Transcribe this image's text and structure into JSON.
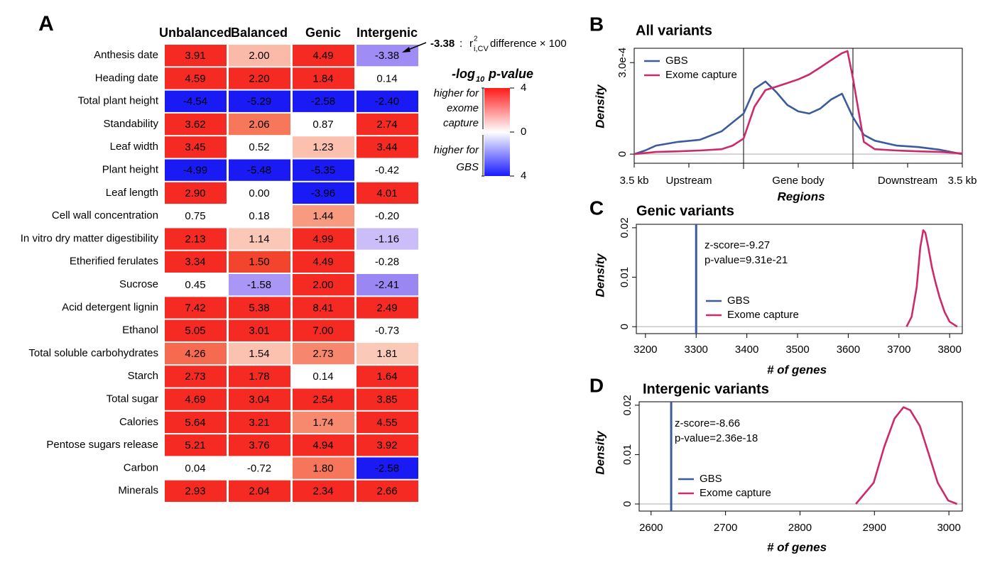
{
  "chart_data": [
    {
      "type": "heatmap",
      "panel": "A",
      "columns": [
        "Unbalanced",
        "Balanced",
        "Genic",
        "Intergenic"
      ],
      "rows": [
        "Anthesis date",
        "Heading date",
        "Total plant height",
        "Standability",
        "Leaf width",
        "Plant height",
        "Leaf length",
        "Cell wall concentration",
        "In vitro dry matter digestibility",
        "Etherified ferulates",
        "Sucrose",
        "Acid detergent lignin",
        "Ethanol",
        "Total soluble carbohydrates",
        "Starch",
        "Total sugar",
        "Calories",
        "Pentose sugars release",
        "Carbon",
        "Minerals"
      ],
      "row_label_colors": [
        "#000000",
        "#000000",
        "#000000",
        "#000000",
        "#000000",
        "#000000",
        "#000000",
        "#7f7f7f",
        "#7f7f7f",
        "#7f7f7f",
        "#7f7f7f",
        "#7f7f7f",
        "#7f7f7f",
        "#7f7f7f",
        "#7f7f7f",
        "#7f7f7f",
        "#7f7f7f",
        "#7f7f7f",
        "#7f7f7f",
        "#7f7f7f"
      ],
      "values": [
        [
          3.91,
          2.0,
          4.49,
          -3.38
        ],
        [
          4.59,
          2.2,
          1.84,
          0.14
        ],
        [
          -4.54,
          -5.29,
          -2.58,
          -2.4
        ],
        [
          3.62,
          2.06,
          0.87,
          2.74
        ],
        [
          3.45,
          0.52,
          1.23,
          3.44
        ],
        [
          -4.99,
          -5.48,
          -5.35,
          -0.42
        ],
        [
          2.9,
          0.0,
          -3.96,
          4.01
        ],
        [
          0.75,
          0.18,
          1.44,
          -0.2
        ],
        [
          2.13,
          1.14,
          4.99,
          -1.16
        ],
        [
          3.34,
          1.5,
          4.49,
          -0.28
        ],
        [
          0.45,
          -1.58,
          2.0,
          -2.41
        ],
        [
          7.42,
          5.38,
          8.41,
          2.49
        ],
        [
          5.05,
          3.01,
          7.0,
          -0.73
        ],
        [
          4.26,
          1.54,
          2.73,
          1.81
        ],
        [
          2.73,
          1.78,
          0.14,
          1.64
        ],
        [
          4.69,
          3.04,
          2.54,
          3.85
        ],
        [
          5.64,
          3.21,
          1.74,
          4.55
        ],
        [
          5.21,
          3.76,
          4.94,
          3.92
        ],
        [
          0.04,
          -0.72,
          1.8,
          -2.58
        ],
        [
          2.93,
          2.04,
          2.34,
          2.66
        ]
      ],
      "value_labels": [
        [
          "3.91",
          "2.00",
          "4.49",
          "-3.38"
        ],
        [
          "4.59",
          "2.20",
          "1.84",
          "0.14"
        ],
        [
          "-4.54",
          "-5.29",
          "-2.58",
          "-2.40"
        ],
        [
          "3.62",
          "2.06",
          "0.87",
          "2.74"
        ],
        [
          "3.45",
          "0.52",
          "1.23",
          "3.44"
        ],
        [
          "-4.99",
          "-5.48",
          "-5.35",
          "-0.42"
        ],
        [
          "2.90",
          "0.00",
          "-3.96",
          "4.01"
        ],
        [
          "0.75",
          "0.18",
          "1.44",
          "-0.20"
        ],
        [
          "2.13",
          "1.14",
          "4.99",
          "-1.16"
        ],
        [
          "3.34",
          "1.50",
          "4.49",
          "-0.28"
        ],
        [
          "0.45",
          "-1.58",
          "2.00",
          "-2.41"
        ],
        [
          "7.42",
          "5.38",
          "8.41",
          "2.49"
        ],
        [
          "5.05",
          "3.01",
          "7.00",
          "-0.73"
        ],
        [
          "4.26",
          "1.54",
          "2.73",
          "1.81"
        ],
        [
          "2.73",
          "1.78",
          "0.14",
          "1.64"
        ],
        [
          "4.69",
          "3.04",
          "2.54",
          "3.85"
        ],
        [
          "5.64",
          "3.21",
          "1.74",
          "4.55"
        ],
        [
          "5.21",
          "3.76",
          "4.94",
          "3.92"
        ],
        [
          "0.04",
          "-0.72",
          "1.80",
          "-2.58"
        ],
        [
          "2.93",
          "2.04",
          "2.34",
          "2.66"
        ]
      ],
      "cell_colors": [
        [
          "#f52a22",
          "#fbb9a8",
          "#f52a22",
          "#9f8cf5"
        ],
        [
          "#f52a22",
          "#f52a22",
          "#f52a22",
          "#ffffff"
        ],
        [
          "#1a1af5",
          "#1a1af5",
          "#1a1af5",
          "#1a1af5"
        ],
        [
          "#f52a22",
          "#f7775a",
          "#ffffff",
          "#f52a22"
        ],
        [
          "#f52a22",
          "#ffffff",
          "#fbc0ae",
          "#f52a22"
        ],
        [
          "#1a1af5",
          "#1a1af5",
          "#1a1af5",
          "#ffffff"
        ],
        [
          "#f52a22",
          "#ffffff",
          "#1a1af5",
          "#f52a22"
        ],
        [
          "#ffffff",
          "#ffffff",
          "#f79a80",
          "#ffffff"
        ],
        [
          "#f52a22",
          "#fbc8b8",
          "#f52a22",
          "#cbbdf7"
        ],
        [
          "#f52a22",
          "#f3452d",
          "#f52a22",
          "#ffffff"
        ],
        [
          "#ffffff",
          "#a996f5",
          "#f52a22",
          "#9a87f4"
        ],
        [
          "#f52a22",
          "#f52a22",
          "#f52a22",
          "#f52a22"
        ],
        [
          "#f52a22",
          "#f52a22",
          "#f52a22",
          "#ffffff"
        ],
        [
          "#f66a50",
          "#fbc2b0",
          "#f7876c",
          "#fbc9b8"
        ],
        [
          "#f52a22",
          "#f52a22",
          "#ffffff",
          "#f52a22"
        ],
        [
          "#f52a22",
          "#f52a22",
          "#f52a22",
          "#f52a22"
        ],
        [
          "#f52a22",
          "#f52a22",
          "#f7896e",
          "#f52a22"
        ],
        [
          "#f52a22",
          "#f52a22",
          "#f52a22",
          "#f52a22"
        ],
        [
          "#ffffff",
          "#ffffff",
          "#f5765a",
          "#1a1af5"
        ],
        [
          "#f52a22",
          "#f52a22",
          "#f52a22",
          "#f52a22"
        ]
      ],
      "annotation": {
        "value_text": "-3.38",
        "sep": ":",
        "symbol": "r",
        "sup": "2",
        "sub": "i,CV",
        "text": "difference × 100"
      },
      "colorbar": {
        "title_prefix": "-log",
        "title_sub": "10",
        "title_suffix": "p-value",
        "lim": [
          -4,
          4
        ],
        "ticks": [
          4,
          0,
          {
            "value": -4,
            "label": "4"
          }
        ],
        "colors": [
          "#1a1aff",
          "#ffffff",
          "#ff1a1a"
        ],
        "upper_label": [
          "higher for",
          "exome",
          "capture"
        ],
        "lower_label": [
          "higher for",
          "GBS"
        ]
      }
    },
    {
      "type": "line",
      "panel": "B",
      "title": "All variants",
      "xlabel": "Regions",
      "ylabel": "Density",
      "xlim": [
        0,
        3
      ],
      "ylim": [
        -3e-05,
        0.000347
      ],
      "xticks": [
        {
          "value": 0,
          "label": "3.5 kb"
        },
        {
          "value": 0.5,
          "label": "Upstream"
        },
        {
          "value": 1.5,
          "label": "Gene body"
        },
        {
          "value": 2.5,
          "label": "Downstream"
        },
        {
          "value": 3,
          "label": "3.5 kb"
        }
      ],
      "yticks": [
        0,
        {
          "value": 0.0003,
          "label": "3.0e-4"
        }
      ],
      "region_boundaries": [
        1,
        2
      ],
      "zero_line": true,
      "legend": "top-left",
      "series": [
        {
          "name": "GBS",
          "color": "#3b5b9b",
          "x": [
            0,
            0.1,
            0.2,
            0.4,
            0.6,
            0.8,
            1.0,
            1.1,
            1.2,
            1.3,
            1.4,
            1.5,
            1.6,
            1.7,
            1.8,
            1.9,
            2.0,
            2.1,
            2.2,
            2.4,
            2.6,
            2.8,
            3.0
          ],
          "values": [
            0,
            1.2e-05,
            2.8e-05,
            4e-05,
            4.7e-05,
            7.5e-05,
            0.000133,
            0.000214,
            0.000238,
            0.000203,
            0.000161,
            0.00014,
            0.000133,
            0.000149,
            0.000179,
            0.000198,
            0.000121,
            6.3e-05,
            4.4e-05,
            2.8e-05,
            2.3e-05,
            1.4e-05,
            0
          ]
        },
        {
          "name": "Exome capture",
          "color": "#cc2a6a",
          "x": [
            0,
            0.2,
            0.4,
            0.6,
            0.8,
            0.9,
            1.0,
            1.1,
            1.2,
            1.3,
            1.4,
            1.5,
            1.6,
            1.7,
            1.8,
            1.9,
            1.95,
            2.0,
            2.1,
            2.2,
            2.4,
            2.6,
            2.8,
            3.0
          ],
          "values": [
            0,
            7e-06,
            9e-06,
            1.2e-05,
            1.6e-05,
            2.8e-05,
            5.1e-05,
            0.000156,
            0.00021,
            0.000221,
            0.000233,
            0.000245,
            0.000261,
            0.000284,
            0.000308,
            0.000331,
            0.000338,
            0.000249,
            4e-05,
            1.6e-05,
            1.2e-05,
            9e-06,
            7e-06,
            2e-06
          ]
        }
      ]
    },
    {
      "type": "line",
      "panel": "C",
      "title": "Genic variants",
      "xlabel": "# of genes",
      "ylabel": "Density",
      "xlim": [
        3182,
        3825
      ],
      "ylim": [
        -0.0014,
        0.0207
      ],
      "xticks": [
        3200,
        3300,
        3400,
        3500,
        3600,
        3700,
        3800
      ],
      "yticks": [
        0,
        0.01,
        0.02
      ],
      "zero_line": true,
      "legend": "middle-left",
      "annotations": [
        "z-score=-9.27",
        "p-value=9.31e-21"
      ],
      "series": [
        {
          "name": "GBS",
          "color": "#3b5b9b",
          "style": "vline",
          "x": [
            3300
          ]
        },
        {
          "name": "Exome capture",
          "color": "#cc2a6a",
          "x": [
            3715,
            3725,
            3735,
            3742,
            3748,
            3752,
            3758,
            3765,
            3772,
            3780,
            3790,
            3800,
            3815
          ],
          "values": [
            0,
            0.002,
            0.008,
            0.016,
            0.0195,
            0.019,
            0.016,
            0.012,
            0.009,
            0.006,
            0.003,
            0.001,
            0
          ]
        }
      ]
    },
    {
      "type": "line",
      "panel": "D",
      "title": "Intergenic variants",
      "xlabel": "# of genes",
      "ylabel": "Density",
      "xlim": [
        2584,
        3018
      ],
      "ylim": [
        -0.00144,
        0.0207
      ],
      "xticks": [
        2600,
        2700,
        2800,
        2900,
        3000
      ],
      "yticks": [
        0,
        0.01,
        0.02
      ],
      "zero_line": true,
      "legend": "middle-left",
      "annotations": [
        "z-score=-8.66",
        "p-value=2.36e-18"
      ],
      "series": [
        {
          "name": "GBS",
          "color": "#3b5b9b",
          "style": "vline",
          "x": [
            2627
          ]
        },
        {
          "name": "Exome capture",
          "color": "#cc2a6a",
          "x": [
            2875,
            2899,
            2913,
            2927,
            2939,
            2948,
            2961,
            2973,
            2985,
            2999,
            3011
          ],
          "values": [
            0,
            0.0043,
            0.0115,
            0.0173,
            0.0196,
            0.019,
            0.0158,
            0.0101,
            0.0043,
            0.0007,
            0
          ]
        }
      ]
    }
  ]
}
